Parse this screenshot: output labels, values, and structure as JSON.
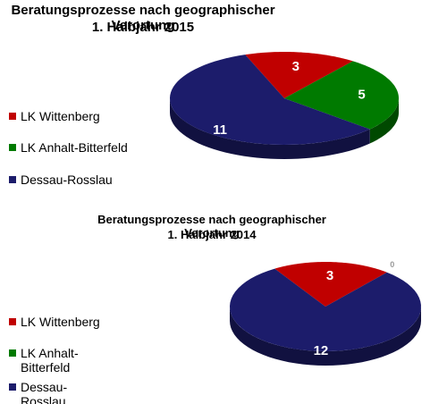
{
  "chart_data": [
    {
      "type": "pie",
      "title": "Beratungsprozesse nach geographischer Verortung",
      "subtitle": "1. Halbjahr 2015",
      "categories": [
        "LK Wittenberg",
        "LK Anhalt-Bitterfeld",
        "Dessau-Rosslau"
      ],
      "values": [
        3,
        5,
        11
      ],
      "colors": [
        "#c00000",
        "#007a00",
        "#1c1c6b"
      ]
    },
    {
      "type": "pie",
      "title": "Beratungsprozesse nach geographischer Verortung",
      "subtitle": "1. Halbjahr 2014",
      "categories": [
        "LK Wittenberg",
        "LK Anhalt-Bitterfeld",
        "Dessau-Rosslau"
      ],
      "values": [
        3,
        0,
        12
      ],
      "colors": [
        "#c00000",
        "#007a00",
        "#1c1c6b"
      ]
    }
  ]
}
